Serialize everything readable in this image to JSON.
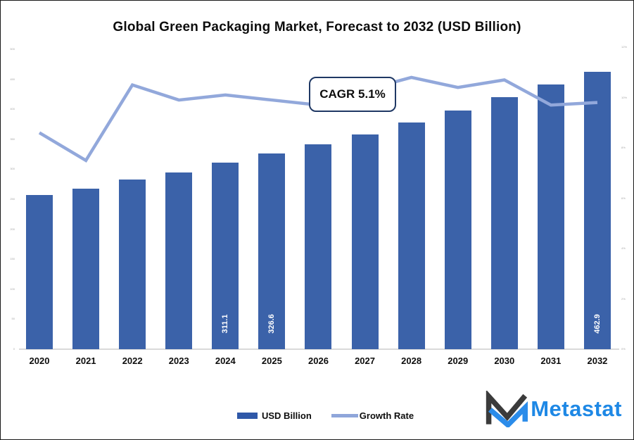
{
  "title": "Global Green Packaging Market, Forecast to 2032 (USD Billion)",
  "annotation": {
    "cagr_label": "CAGR 5.1%"
  },
  "legend": {
    "bar_label": "USD Billion",
    "line_label": "Growth Rate"
  },
  "logo": {
    "brand": "Metastat"
  },
  "colors": {
    "bar": "#3b62a9",
    "line": "#92a8db",
    "legend_bar_swatch": "#2f58a8",
    "legend_line_swatch": "#8fa6da",
    "cagr_border": "#1f3864",
    "axis_line": "#d9d9d9",
    "logo_blue": "#1e88e5",
    "logo_dark": "#3b3b3b"
  },
  "chart_data": {
    "type": "bar",
    "subtype": "bar+line combo, dual axis",
    "title": "Global Green Packaging Market, Forecast to 2032 (USD Billion)",
    "categories": [
      "2020",
      "2021",
      "2022",
      "2023",
      "2024",
      "2025",
      "2026",
      "2027",
      "2028",
      "2029",
      "2030",
      "2031",
      "2032"
    ],
    "series": [
      {
        "name": "USD Billion",
        "type": "bar",
        "axis": "left",
        "values": [
          256.8,
          267.3,
          282.5,
          294.3,
          311.1,
          326.6,
          341.2,
          357.5,
          377.6,
          397.5,
          419.8,
          440.9,
          462.9
        ],
        "data_labels": [
          "",
          "",
          "",
          "",
          "311.1",
          "326.6",
          "",
          "",
          "",
          "",
          "",
          "",
          "462.9"
        ]
      },
      {
        "name": "Growth Rate",
        "type": "line",
        "axis": "right",
        "values": [
          8.6,
          7.5,
          10.5,
          9.9,
          10.1,
          9.9,
          9.7,
          10.3,
          10.8,
          10.4,
          10.7,
          9.7,
          9.8
        ]
      }
    ],
    "y_left": {
      "min": 0,
      "max": 500,
      "step": 50,
      "labels_visible": "tiny/faint"
    },
    "y_right": {
      "min": 0,
      "max": 12,
      "step": 2,
      "unit": "%",
      "labels_visible": "tiny/faint"
    },
    "grid": false,
    "legend_position": "bottom",
    "annotation": "CAGR 5.1%"
  }
}
